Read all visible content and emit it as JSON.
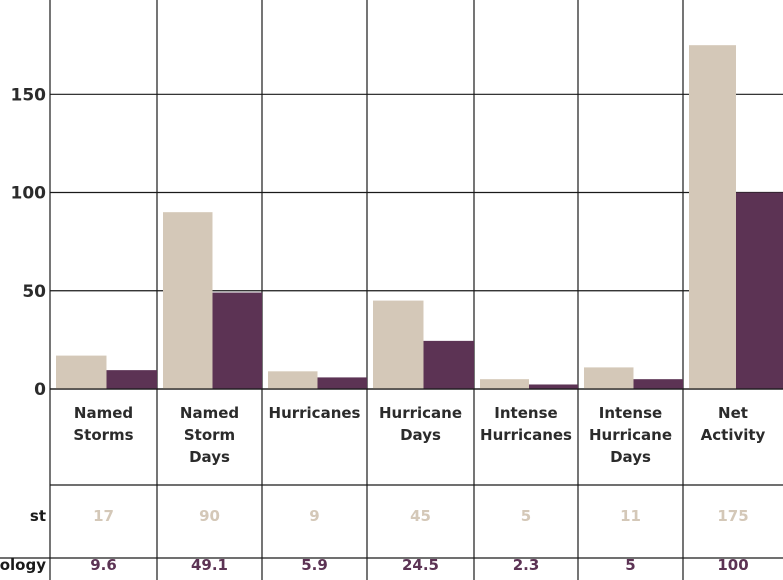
{
  "colors": {
    "forecast": "#d4c8b8",
    "climatology": "#5c3354",
    "grid": "#1a1a1a",
    "text": "#2b2b2b"
  },
  "chart_data": {
    "type": "bar",
    "categories": [
      [
        "Named",
        "Storms"
      ],
      [
        "Named",
        "Storm",
        "Days"
      ],
      [
        "Hurricanes"
      ],
      [
        "Hurricane",
        "Days"
      ],
      [
        "Intense",
        "Hurricanes"
      ],
      [
        "Intense",
        "Hurricane",
        "Days"
      ],
      [
        "Net",
        "Activity"
      ]
    ],
    "series": [
      {
        "name": "Forecast",
        "row_label": "st",
        "values": [
          17,
          90,
          9,
          45,
          5,
          11,
          175
        ]
      },
      {
        "name": "Climatology",
        "row_label": "ology",
        "values": [
          9.6,
          49.1,
          5.9,
          24.5,
          2.3,
          5,
          100
        ]
      }
    ],
    "table_values": [
      [
        "17",
        "90",
        "9",
        "45",
        "5",
        "11",
        "175"
      ],
      [
        "9.6",
        "49.1",
        "5.9",
        "24.5",
        "2.3",
        "5",
        "100"
      ]
    ],
    "y_ticks": [
      "0",
      "50",
      "100",
      "150"
    ],
    "ylim": [
      0,
      198
    ],
    "grid": true
  }
}
